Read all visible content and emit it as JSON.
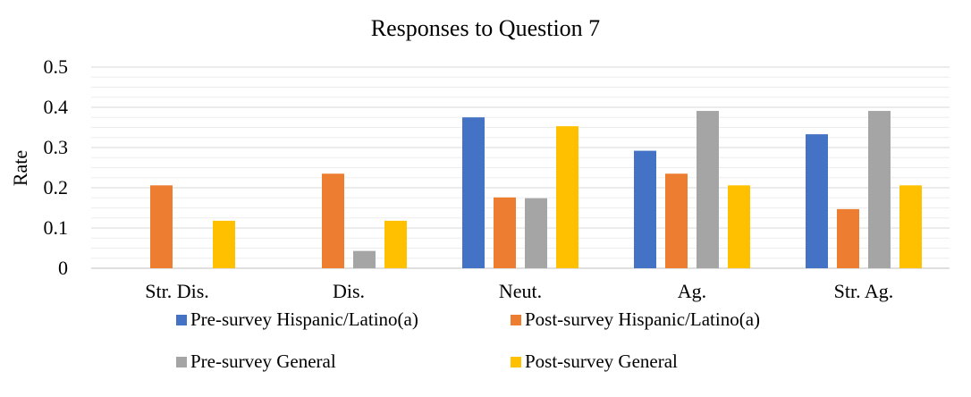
{
  "chart_data": {
    "type": "bar",
    "title": "Responses to Question 7",
    "xlabel": "",
    "ylabel": "Rate",
    "ylim": [
      0,
      0.5
    ],
    "yticks": [
      "0",
      "0.1",
      "0.2",
      "0.3",
      "0.4",
      "0.5"
    ],
    "ytick_values": [
      0,
      0.1,
      0.2,
      0.3,
      0.4,
      0.5
    ],
    "minor_gridlines": true,
    "legend_position": "bottom",
    "categories": [
      "Str. Dis.",
      "Dis.",
      "Neut.",
      "Ag.",
      "Str. Ag."
    ],
    "series": [
      {
        "name": "Pre-survey Hispanic/Latino(a)",
        "color": "#4472C4",
        "values": [
          0,
          0,
          0.375,
          0.292,
          0.333
        ]
      },
      {
        "name": "Post-survey Hispanic/Latino(a)",
        "color": "#ED7D31",
        "values": [
          0.206,
          0.235,
          0.176,
          0.235,
          0.147
        ]
      },
      {
        "name": "Pre-survey General",
        "color": "#A5A5A5",
        "values": [
          0,
          0.043,
          0.174,
          0.391,
          0.391
        ]
      },
      {
        "name": "Post-survey General",
        "color": "#FFC000",
        "values": [
          0.118,
          0.118,
          0.353,
          0.206,
          0.206
        ]
      }
    ]
  }
}
